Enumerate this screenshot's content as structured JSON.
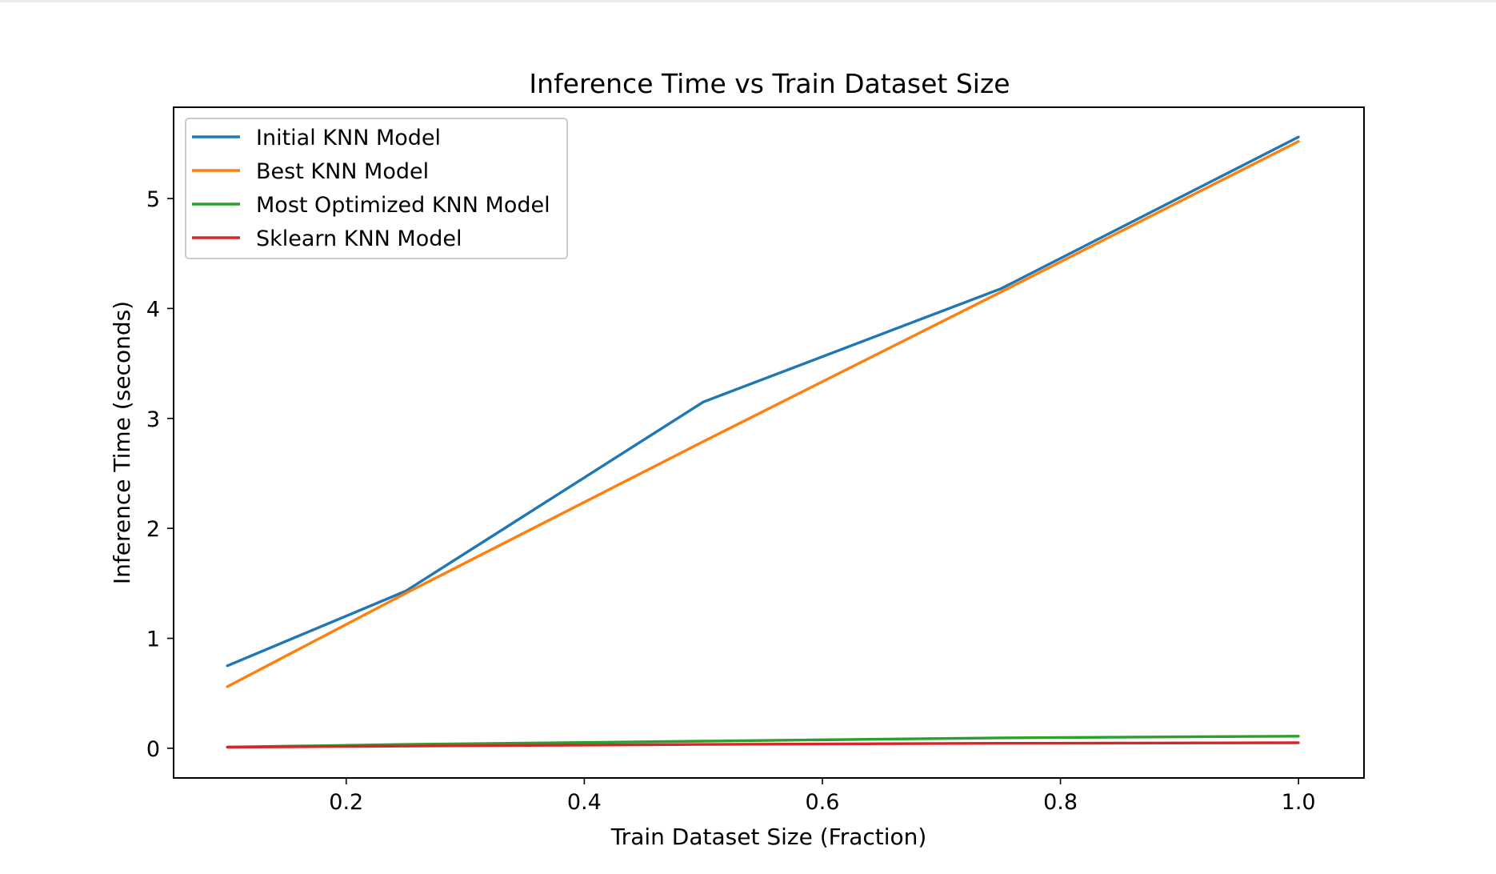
{
  "chart_data": {
    "type": "line",
    "title": "Inference Time vs Train Dataset Size",
    "xlabel": "Train Dataset Size (Fraction)",
    "ylabel": "Inference Time (seconds)",
    "xlim": [
      0.055,
      1.055
    ],
    "ylim": [
      -0.27,
      5.83
    ],
    "xticks": [
      0.2,
      0.4,
      0.6,
      0.8,
      1.0
    ],
    "xtick_labels": [
      "0.2",
      "0.4",
      "0.6",
      "0.8",
      "1.0"
    ],
    "yticks": [
      0,
      1,
      2,
      3,
      4,
      5
    ],
    "ytick_labels": [
      "0",
      "1",
      "2",
      "3",
      "4",
      "5"
    ],
    "grid": false,
    "legend_position": "top-left",
    "x": [
      0.1,
      0.25,
      0.5,
      0.75,
      1.0
    ],
    "series": [
      {
        "name": "Initial KNN Model",
        "color": "#1f77b4",
        "values": [
          0.75,
          1.43,
          3.15,
          4.18,
          5.56
        ]
      },
      {
        "name": "Best KNN Model",
        "color": "#ff7f0e",
        "values": [
          0.56,
          1.41,
          2.79,
          4.15,
          5.52
        ]
      },
      {
        "name": "Most Optimized KNN Model",
        "color": "#2ca02c",
        "values": [
          0.01,
          0.035,
          0.065,
          0.095,
          0.11
        ]
      },
      {
        "name": "Sklearn KNN Model",
        "color": "#d62728",
        "values": [
          0.01,
          0.02,
          0.035,
          0.045,
          0.05
        ]
      }
    ]
  }
}
